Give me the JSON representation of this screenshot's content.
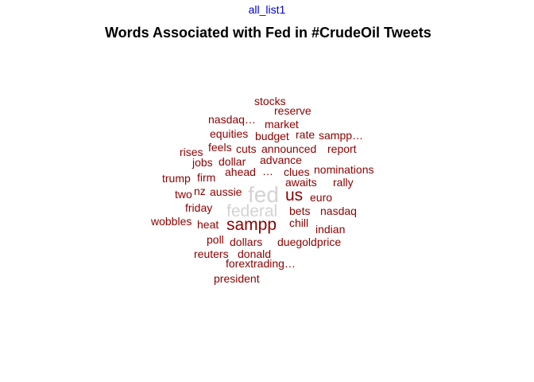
{
  "top_label": "all_list1",
  "colors": {
    "top_label": "#0000cc",
    "title": "#000000",
    "top_words": "#d3d3d3",
    "words": "#8b0000"
  },
  "chart_data": {
    "type": "wordcloud",
    "title": "Words Associated with Fed in #CrudeOil Tweets",
    "words": [
      {
        "word": "fed",
        "weight": 5,
        "color": "#d3d3d3"
      },
      {
        "word": "federal",
        "weight": 3,
        "color": "#d3d3d3"
      },
      {
        "word": "sampp",
        "weight": 3,
        "color": "#8b0000"
      },
      {
        "word": "us",
        "weight": 3,
        "color": "#8b0000"
      },
      {
        "word": "stocks",
        "weight": 1,
        "color": "#8b0000"
      },
      {
        "word": "reserve",
        "weight": 1,
        "color": "#8b0000"
      },
      {
        "word": "nasdaq…",
        "weight": 1,
        "color": "#8b0000"
      },
      {
        "word": "market",
        "weight": 1,
        "color": "#8b0000"
      },
      {
        "word": "equities",
        "weight": 1,
        "color": "#8b0000"
      },
      {
        "word": "budget",
        "weight": 1,
        "color": "#8b0000"
      },
      {
        "word": "rate",
        "weight": 1,
        "color": "#8b0000"
      },
      {
        "word": "sampp…",
        "weight": 1,
        "color": "#8b0000"
      },
      {
        "word": "rises",
        "weight": 1,
        "color": "#8b0000"
      },
      {
        "word": "feels",
        "weight": 1,
        "color": "#8b0000"
      },
      {
        "word": "cuts",
        "weight": 1,
        "color": "#8b0000"
      },
      {
        "word": "announced",
        "weight": 1,
        "color": "#8b0000"
      },
      {
        "word": "report",
        "weight": 1,
        "color": "#8b0000"
      },
      {
        "word": "jobs",
        "weight": 1,
        "color": "#8b0000"
      },
      {
        "word": "dollar",
        "weight": 1,
        "color": "#8b0000"
      },
      {
        "word": "advance",
        "weight": 1,
        "color": "#8b0000"
      },
      {
        "word": "ahead",
        "weight": 1,
        "color": "#8b0000"
      },
      {
        "word": "…",
        "weight": 1,
        "color": "#8b0000"
      },
      {
        "word": "clues",
        "weight": 1,
        "color": "#8b0000"
      },
      {
        "word": "nominations",
        "weight": 1,
        "color": "#8b0000"
      },
      {
        "word": "trump",
        "weight": 1,
        "color": "#8b0000"
      },
      {
        "word": "firm",
        "weight": 1,
        "color": "#8b0000"
      },
      {
        "word": "awaits",
        "weight": 1,
        "color": "#8b0000"
      },
      {
        "word": "rally",
        "weight": 1,
        "color": "#8b0000"
      },
      {
        "word": "two",
        "weight": 1,
        "color": "#8b0000"
      },
      {
        "word": "nz",
        "weight": 1,
        "color": "#8b0000"
      },
      {
        "word": "aussie",
        "weight": 1,
        "color": "#8b0000"
      },
      {
        "word": "euro",
        "weight": 1,
        "color": "#8b0000"
      },
      {
        "word": "friday",
        "weight": 1,
        "color": "#8b0000"
      },
      {
        "word": "bets",
        "weight": 1,
        "color": "#8b0000"
      },
      {
        "word": "nasdaq",
        "weight": 1,
        "color": "#8b0000"
      },
      {
        "word": "wobbles",
        "weight": 1,
        "color": "#8b0000"
      },
      {
        "word": "heat",
        "weight": 1,
        "color": "#8b0000"
      },
      {
        "word": "chill",
        "weight": 1,
        "color": "#8b0000"
      },
      {
        "word": "indian",
        "weight": 1,
        "color": "#8b0000"
      },
      {
        "word": "poll",
        "weight": 1,
        "color": "#8b0000"
      },
      {
        "word": "dollars",
        "weight": 1,
        "color": "#8b0000"
      },
      {
        "word": "duegoldprice",
        "weight": 1,
        "color": "#8b0000"
      },
      {
        "word": "reuters",
        "weight": 1,
        "color": "#8b0000"
      },
      {
        "word": "donald",
        "weight": 1,
        "color": "#8b0000"
      },
      {
        "word": "forextrading…",
        "weight": 1,
        "color": "#8b0000"
      },
      {
        "word": "president",
        "weight": 1,
        "color": "#8b0000"
      }
    ]
  }
}
